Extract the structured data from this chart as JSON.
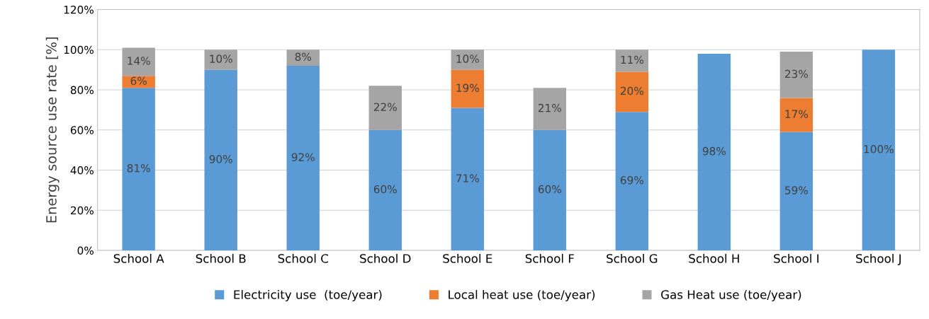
{
  "chart_data": {
    "type": "bar",
    "stacked": true,
    "ylabel": "Energy source use rate [%]",
    "categories": [
      "School A",
      "School B",
      "School C",
      "School D",
      "School E",
      "School F",
      "School G",
      "School H",
      "School I",
      "School J"
    ],
    "series": [
      {
        "name": "Electricity use  (toe/year)",
        "color": "#5b9bd5",
        "values": [
          81,
          90,
          92,
          60,
          71,
          60,
          69,
          98,
          59,
          100
        ],
        "value_labels": [
          "81%",
          "90%",
          "92%",
          "60%",
          "71%",
          "60%",
          "69%",
          "98%",
          "59%",
          "100%"
        ]
      },
      {
        "name": "Local heat use (toe/year)",
        "color": "#ed7d31",
        "values": [
          6,
          null,
          null,
          null,
          19,
          null,
          20,
          null,
          17,
          null
        ],
        "value_labels": [
          "6%",
          null,
          null,
          null,
          "19%",
          null,
          "20%",
          null,
          "17%",
          null
        ]
      },
      {
        "name": "Gas Heat use (toe/year)",
        "color": "#a5a5a5",
        "values": [
          14,
          10,
          8,
          22,
          10,
          21,
          11,
          null,
          23,
          null
        ],
        "value_labels": [
          "14%",
          "10%",
          "8%",
          "22%",
          "10%",
          "21%",
          "11%",
          null,
          "23%",
          null
        ]
      }
    ],
    "ylim": [
      0,
      120
    ],
    "yticks": [
      {
        "value": 0,
        "label": "0%"
      },
      {
        "value": 20,
        "label": "20%"
      },
      {
        "value": 40,
        "label": "40%"
      },
      {
        "value": 60,
        "label": "60%"
      },
      {
        "value": 80,
        "label": "80%"
      },
      {
        "value": 100,
        "label": "100%"
      },
      {
        "value": 120,
        "label": "120%"
      }
    ],
    "grid": "y",
    "legend": "bottom"
  }
}
